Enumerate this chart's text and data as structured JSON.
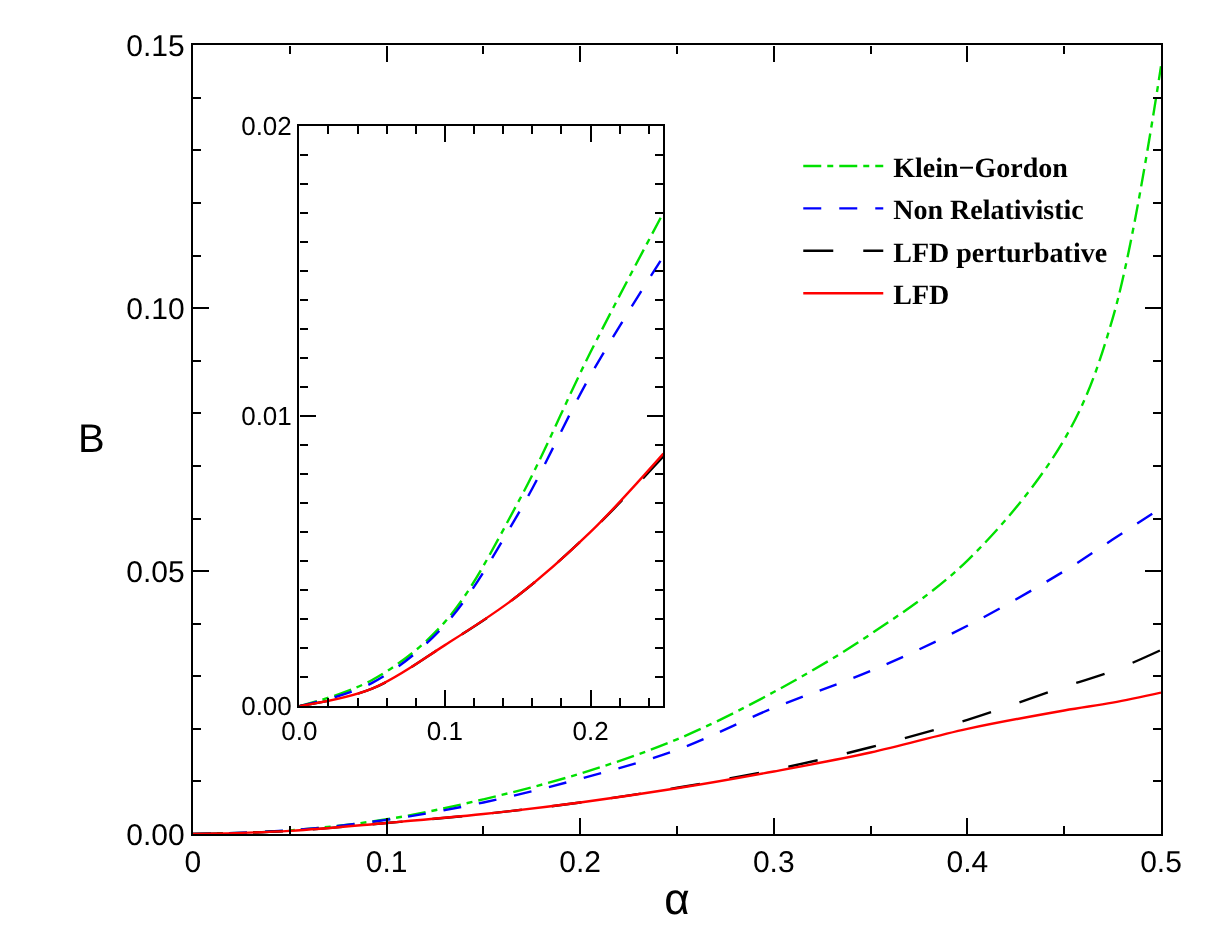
{
  "chart_data": [
    {
      "type": "line",
      "xlabel": "α",
      "ylabel": "B",
      "legend": "top right",
      "marker": "none",
      "x": [
        0,
        0.05,
        0.1,
        0.15,
        0.2,
        0.25,
        0.3,
        0.35,
        0.4,
        0.45,
        0.475,
        0.5
      ],
      "xlim": [
        0,
        0.5
      ],
      "xticks": [
        0,
        0.1,
        0.2,
        0.3,
        0.4,
        0.5
      ],
      "ylim": [
        0,
        0.15
      ],
      "yticks": [
        {
          "value": 0,
          "label": "0.00"
        },
        {
          "value": 0.05,
          "label": "0.05"
        },
        {
          "value": 0.1,
          "label": "0.10"
        },
        {
          "value": 0.15,
          "label": "0.15"
        }
      ],
      "series": [
        {
          "name": "Klein−Gordon",
          "color": "#00e000",
          "line_style": "dashdot",
          "values": [
            0,
            0.0007,
            0.0028,
            0.0066,
            0.0115,
            0.018,
            0.027,
            0.038,
            0.052,
            0.075,
            0.098,
            0.146
          ]
        },
        {
          "name": "Non Relativistic",
          "color": "#0000ff",
          "line_style": "dashed",
          "values": [
            0,
            0.0007,
            0.0027,
            0.006,
            0.0105,
            0.016,
            0.024,
            0.031,
            0.0396,
            0.05,
            0.056,
            0.062
          ]
        },
        {
          "name": "LFD perturbative",
          "color": "#000000",
          "line_style": "longdash",
          "values": [
            0,
            0.0006,
            0.0021,
            0.0038,
            0.006,
            0.0088,
            0.0122,
            0.0165,
            0.0217,
            0.028,
            0.031,
            0.035
          ]
        },
        {
          "name": "LFD",
          "color": "#ff0000",
          "line_style": "solid",
          "values": [
            0,
            0.0006,
            0.0021,
            0.0038,
            0.006,
            0.0087,
            0.0119,
            0.0155,
            0.02,
            0.0235,
            0.025,
            0.0269
          ]
        }
      ]
    },
    {
      "type": "line",
      "legend": false,
      "marker": "none",
      "x": [
        0,
        0.05,
        0.1,
        0.15,
        0.2,
        0.25
      ],
      "xlim": [
        0,
        0.25
      ],
      "xticks": [
        {
          "value": 0,
          "label": "0.0"
        },
        {
          "value": 0.1,
          "label": "0.1"
        },
        {
          "value": 0.2,
          "label": "0.2"
        }
      ],
      "ylim": [
        0,
        0.02
      ],
      "yticks": [
        {
          "value": 0,
          "label": "0.00"
        },
        {
          "value": 0.01,
          "label": "0.01"
        },
        {
          "value": 0.02,
          "label": "0.02"
        }
      ],
      "series": [
        {
          "color": "#00e000",
          "line_style": "dashdot",
          "values": [
            0,
            0.0009,
            0.0029,
            0.007,
            0.0122,
            0.017
          ]
        },
        {
          "color": "#0000ff",
          "line_style": "dashed",
          "values": [
            0,
            0.0008,
            0.0028,
            0.0066,
            0.0114,
            0.0155
          ]
        },
        {
          "color": "#000000",
          "line_style": "longdash",
          "values": [
            0,
            0.0006,
            0.0021,
            0.0038,
            0.006,
            0.0086
          ]
        },
        {
          "color": "#ff0000",
          "line_style": "solid",
          "values": [
            0,
            0.0006,
            0.0021,
            0.0038,
            0.006,
            0.0087
          ]
        }
      ]
    }
  ]
}
